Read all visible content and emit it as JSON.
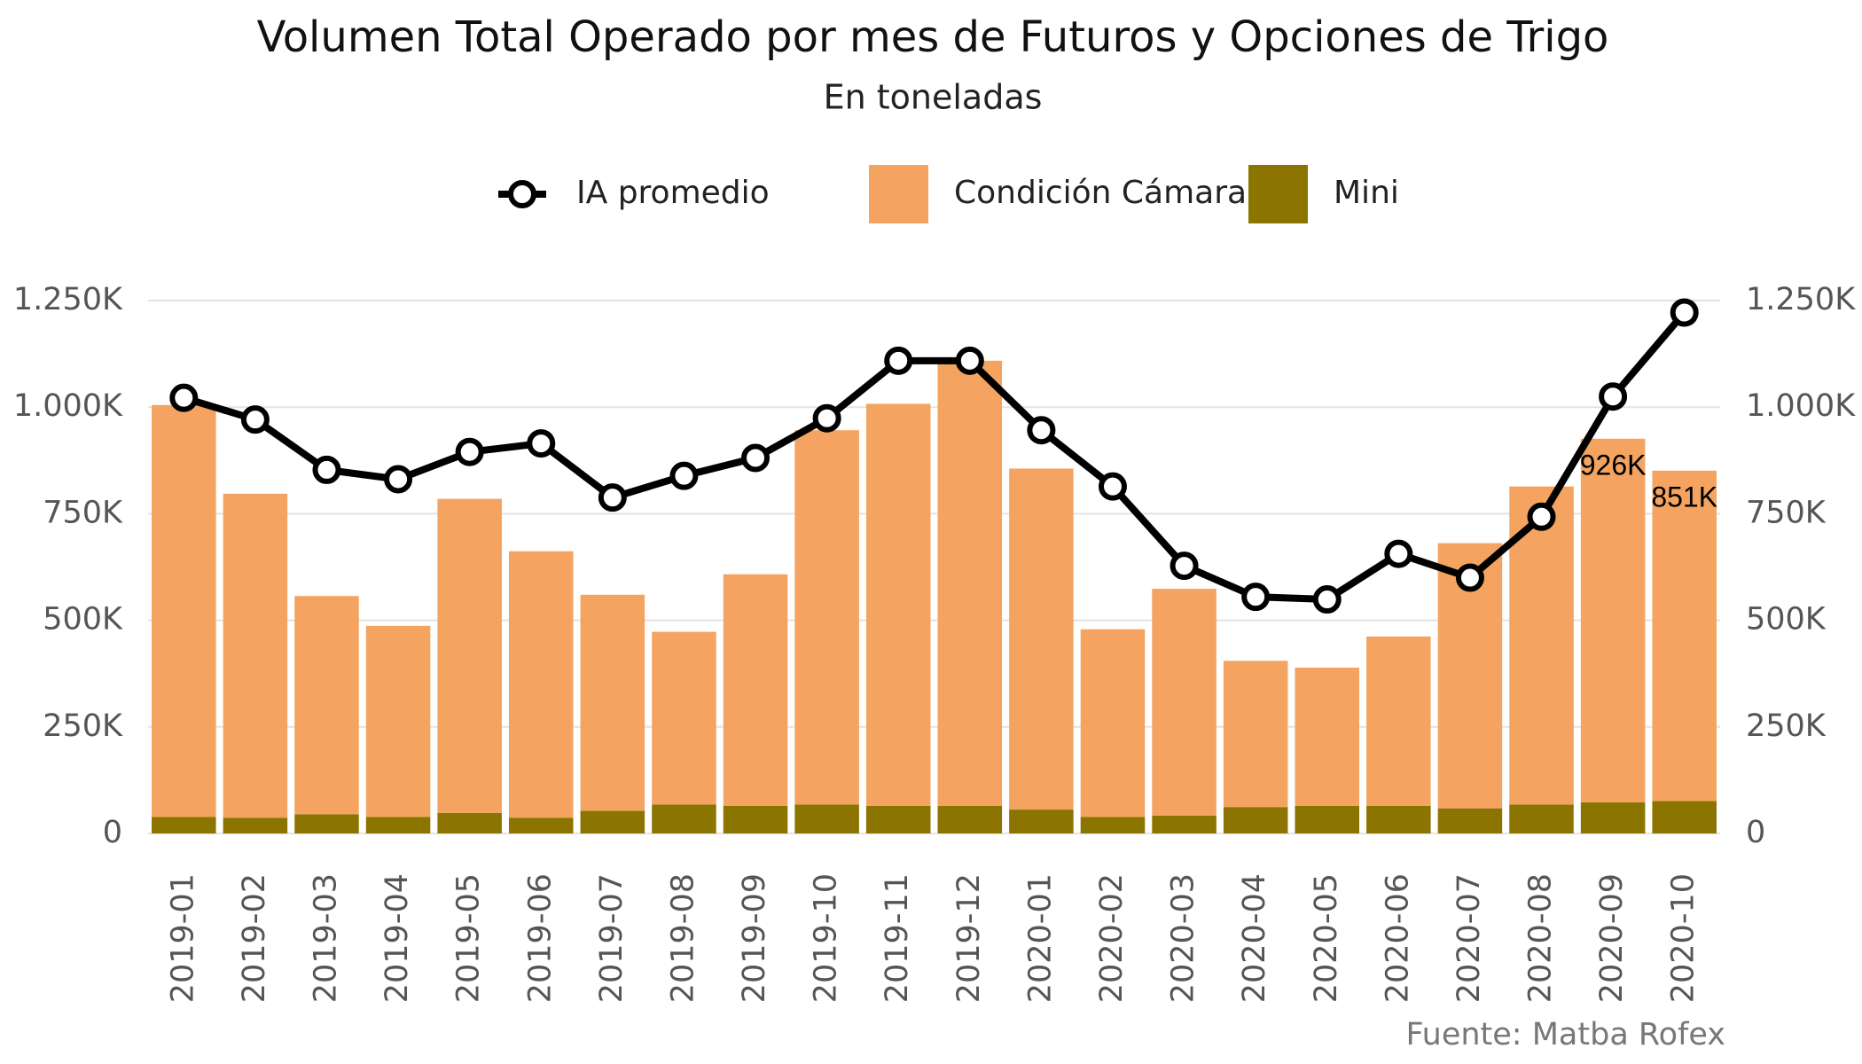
{
  "chart_data": {
    "type": "bar",
    "title": "Volumen Total Operado por mes de Futuros y Opciones de Trigo",
    "subtitle": "En toneladas",
    "source": "Fuente: Matba Rofex",
    "categories": [
      "2019-01",
      "2019-02",
      "2019-03",
      "2019-04",
      "2019-05",
      "2019-06",
      "2019-07",
      "2019-08",
      "2019-09",
      "2019-10",
      "2019-11",
      "2019-12",
      "2020-01",
      "2020-02",
      "2020-03",
      "2020-04",
      "2020-05",
      "2020-06",
      "2020-07",
      "2020-08",
      "2020-09",
      "2020-10"
    ],
    "series": [
      {
        "name": "IA promedio",
        "type": "line",
        "axis": "y2",
        "color": "#000000",
        "values": [
          1022,
          971,
          853,
          831,
          895,
          915,
          788,
          839,
          881,
          974,
          1109,
          1109,
          946,
          814,
          628,
          555,
          549,
          656,
          600,
          743,
          1025,
          1222
        ]
      },
      {
        "name": "Condición Cámara",
        "type": "bar",
        "color": "#F4A460",
        "values": [
          966,
          760,
          512,
          448,
          737,
          625,
          507,
          405,
          543,
          878,
          943,
          1044,
          800,
          440,
          532,
          343,
          324,
          397,
          622,
          746,
          853,
          775
        ]
      },
      {
        "name": "Mini",
        "type": "bar",
        "color": "#8B7500",
        "values": [
          39,
          37,
          45,
          39,
          48,
          37,
          53,
          68,
          65,
          68,
          65,
          65,
          56,
          39,
          42,
          62,
          65,
          65,
          59,
          68,
          73,
          76
        ]
      }
    ],
    "annotations": [
      {
        "text": "926K"
      },
      {
        "text": "851K"
      }
    ],
    "ylim": [
      0,
      1300
    ],
    "yticks": [
      0,
      {
        "value": 250,
        "label": "250K"
      },
      {
        "value": 500,
        "label": "500K"
      },
      {
        "value": 750,
        "label": "750K"
      },
      {
        "value": 1000,
        "label": "1.000K"
      },
      {
        "value": 1250,
        "label": "1.250K"
      }
    ],
    "y2lim": [
      0,
      1300
    ],
    "y2ticks": [
      0,
      {
        "value": 250,
        "label": "250K"
      },
      {
        "value": 500,
        "label": "500K"
      },
      {
        "value": 750,
        "label": "750K"
      },
      {
        "value": 1000,
        "label": "1.000K"
      },
      {
        "value": 1250,
        "label": "1.250K"
      }
    ],
    "grid": true,
    "legend": "top"
  }
}
